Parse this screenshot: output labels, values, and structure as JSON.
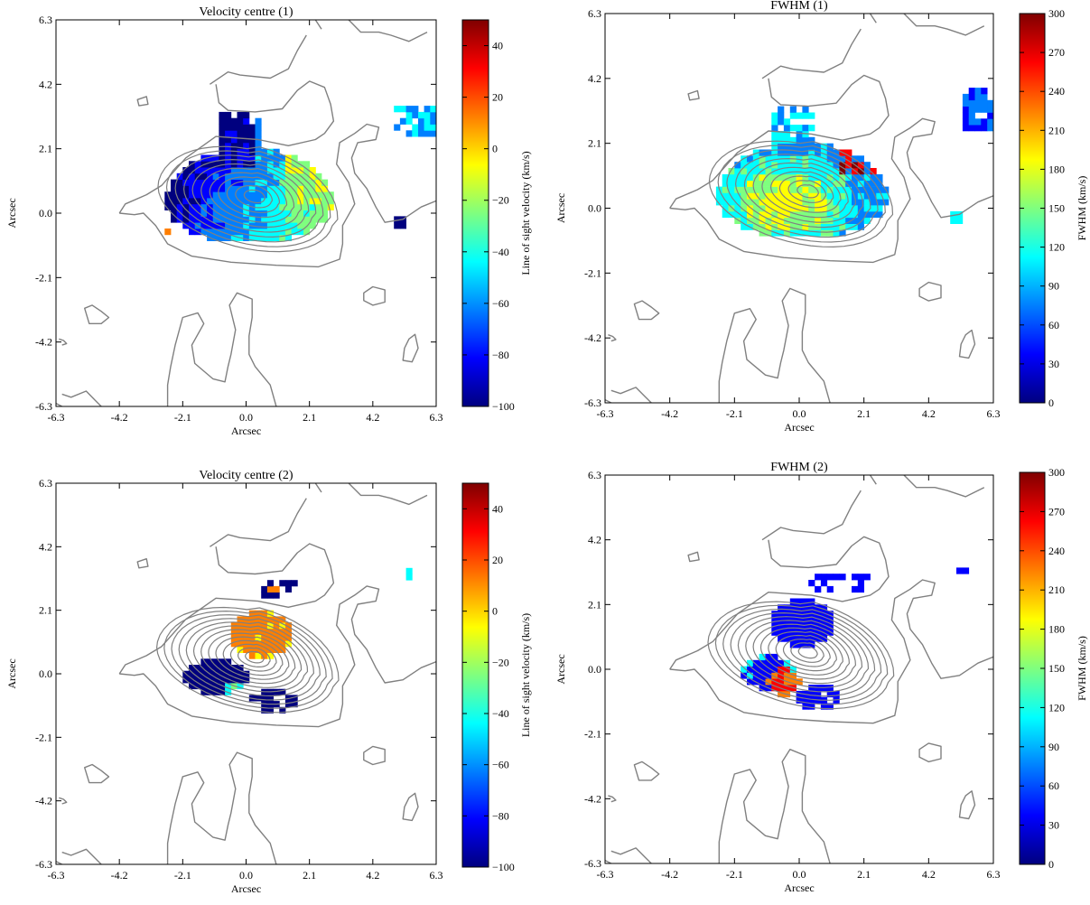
{
  "colorscale": [
    "#00007f",
    "#0000ff",
    "#007fff",
    "#00ffff",
    "#7fff7f",
    "#ffff00",
    "#ff7f00",
    "#ff0000",
    "#7f0000"
  ],
  "contour_color": "#808080",
  "chart_data": [
    {
      "type": "heatmap",
      "title": "Velocity centre (1)",
      "xlabel": "Arcsec",
      "ylabel": "Arcsec",
      "xlim": [
        -6.3,
        6.3
      ],
      "ylim": [
        -6.3,
        6.3
      ],
      "x_ticks": [
        "-6.3",
        "-4.2",
        "-2.1",
        "0.0",
        "2.1",
        "4.2",
        "6.3"
      ],
      "y_ticks": [
        "-6.3",
        "-4.2",
        "-2.1",
        "0.0",
        "2.1",
        "4.2",
        "6.3"
      ],
      "colorbar": {
        "label": "Line of sight velocity (km/s)",
        "range": [
          -100,
          50
        ],
        "ticks": [
          "40",
          "20",
          "0",
          "−20",
          "−40",
          "−60",
          "−80",
          "−100"
        ],
        "tick_values": [
          40,
          20,
          0,
          -20,
          -40,
          -60,
          -80,
          -100
        ]
      },
      "contours": true
    },
    {
      "type": "heatmap",
      "title": "FWHM (1)",
      "xlabel": "Arcsec",
      "ylabel": "Arcsec",
      "xlim": [
        -6.3,
        6.3
      ],
      "ylim": [
        -6.3,
        6.3
      ],
      "x_ticks": [
        "-6.3",
        "-4.2",
        "-2.1",
        "0.0",
        "2.1",
        "4.2",
        "6.3"
      ],
      "y_ticks": [
        "-6.3",
        "-4.2",
        "-2.1",
        "0.0",
        "2.1",
        "4.2",
        "6.3"
      ],
      "colorbar": {
        "label": "FWHM (km/s)",
        "range": [
          0,
          300
        ],
        "ticks": [
          "300",
          "270",
          "240",
          "210",
          "180",
          "150",
          "120",
          "90",
          "60",
          "30",
          "0"
        ],
        "tick_values": [
          300,
          270,
          240,
          210,
          180,
          150,
          120,
          90,
          60,
          30,
          0
        ]
      },
      "contours": true
    },
    {
      "type": "heatmap",
      "title": "Velocity centre (2)",
      "xlabel": "Arcsec",
      "ylabel": "Arcsec",
      "xlim": [
        -6.3,
        6.3
      ],
      "ylim": [
        -6.3,
        6.3
      ],
      "x_ticks": [
        "-6.3",
        "-4.2",
        "-2.1",
        "0.0",
        "2.1",
        "4.2",
        "6.3"
      ],
      "y_ticks": [
        "-6.3",
        "-4.2",
        "-2.1",
        "0.0",
        "2.1",
        "4.2",
        "6.3"
      ],
      "colorbar": {
        "label": "Line of sight velocity (km/s)",
        "range": [
          -100,
          50
        ],
        "ticks": [
          "40",
          "20",
          "0",
          "−20",
          "−40",
          "−60",
          "−80",
          "−100"
        ],
        "tick_values": [
          40,
          20,
          0,
          -20,
          -40,
          -60,
          -80,
          -100
        ]
      },
      "contours": true
    },
    {
      "type": "heatmap",
      "title": "FWHM (2)",
      "xlabel": "Arcsec",
      "ylabel": "Arcsec",
      "xlim": [
        -6.3,
        6.3
      ],
      "ylim": [
        -6.3,
        6.3
      ],
      "x_ticks": [
        "-6.3",
        "-4.2",
        "-2.1",
        "0.0",
        "2.1",
        "4.2",
        "6.3"
      ],
      "y_ticks": [
        "-6.3",
        "-4.2",
        "-2.1",
        "0.0",
        "2.1",
        "4.2",
        "6.3"
      ],
      "colorbar": {
        "label": "FWHM (km/s)",
        "range": [
          0,
          300
        ],
        "ticks": [
          "300",
          "270",
          "240",
          "210",
          "180",
          "150",
          "120",
          "90",
          "60",
          "30",
          "0"
        ],
        "tick_values": [
          300,
          270,
          240,
          210,
          180,
          150,
          120,
          90,
          60,
          30,
          0
        ]
      },
      "contours": true
    }
  ]
}
